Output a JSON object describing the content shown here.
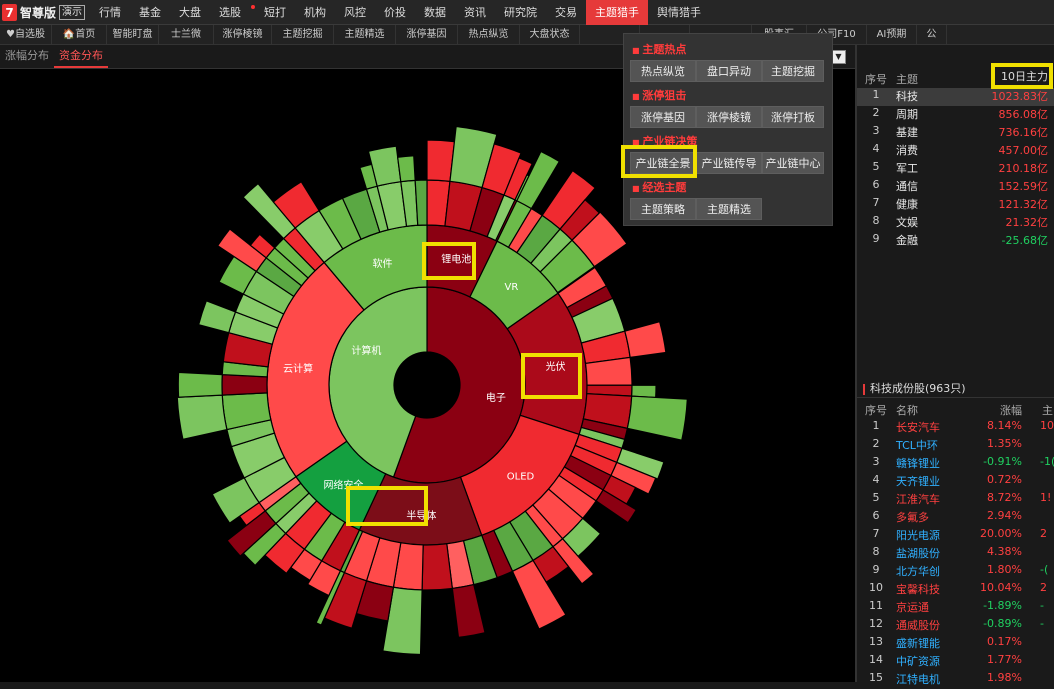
{
  "app": {
    "logo_glyph": "7",
    "name": "智尊版",
    "badge": "演示"
  },
  "topnav": [
    "行情",
    "基金",
    "大盘",
    "选股",
    "短打",
    "机构",
    "风控",
    "价投",
    "数据",
    "资讯",
    "研究院",
    "交易",
    "主题猎手",
    "舆情猎手"
  ],
  "topnav_selected": "主题猎手",
  "subnav": [
    "♥自选股",
    "🏠首页",
    "智能盯盘",
    "士兰微",
    "涨停棱镜",
    "主题挖掘",
    "主题精选",
    "涨停基因",
    "热点纵览",
    "大盘状态",
    "",
    "",
    "",
    "股事汇",
    "公司F10",
    "AI预期",
    "公"
  ],
  "tabs": [
    "涨幅分布",
    "资金分布"
  ],
  "tabs_selected": "资金分布",
  "dropdown_symbol": "▼",
  "menu": {
    "sections": [
      {
        "title": "主题热点",
        "buttons": [
          "热点纵览",
          "盘口异动",
          "主题挖掘"
        ]
      },
      {
        "title": "涨停狙击",
        "buttons": [
          "涨停基因",
          "涨停棱镜",
          "涨停打板"
        ]
      },
      {
        "title": "产业链决策",
        "buttons": [
          "产业链全景",
          "产业链传导",
          "产业链中心"
        ]
      },
      {
        "title": "经选主题",
        "buttons": [
          "主题策略",
          "主题精选"
        ]
      }
    ]
  },
  "sector_table": {
    "headers": {
      "no": "序号",
      "name": "主题",
      "value": "10日主力"
    },
    "rows": [
      {
        "no": "1",
        "name": "科技",
        "value": "1023.83亿",
        "dir": "up"
      },
      {
        "no": "2",
        "name": "周期",
        "value": "856.08亿",
        "dir": "up"
      },
      {
        "no": "3",
        "name": "基建",
        "value": "736.16亿",
        "dir": "up"
      },
      {
        "no": "4",
        "name": "消费",
        "value": "457.00亿",
        "dir": "up"
      },
      {
        "no": "5",
        "name": "军工",
        "value": "210.18亿",
        "dir": "up"
      },
      {
        "no": "6",
        "name": "通信",
        "value": "152.59亿",
        "dir": "up"
      },
      {
        "no": "7",
        "name": "健康",
        "value": "121.32亿",
        "dir": "up"
      },
      {
        "no": "8",
        "name": "文娱",
        "value": "21.32亿",
        "dir": "up"
      },
      {
        "no": "9",
        "name": "金融",
        "value": "-25.68亿",
        "dir": "dn"
      }
    ]
  },
  "stock_section": {
    "title": "科技成份股(963只)",
    "headers": {
      "no": "序号",
      "name": "名称",
      "pct": "涨幅",
      "extra": "主"
    },
    "rows": [
      {
        "no": "1",
        "name": "长安汽车",
        "pct": "8.14%",
        "extra": "10",
        "nc": "up",
        "pc": "up",
        "ec": "up"
      },
      {
        "no": "2",
        "name": "TCL中环",
        "pct": "1.35%",
        "extra": "",
        "nc": "blue",
        "pc": "up",
        "ec": "up"
      },
      {
        "no": "3",
        "name": "赣锋锂业",
        "pct": "-0.91%",
        "extra": "-1(",
        "nc": "blue",
        "pc": "dn",
        "ec": "dn"
      },
      {
        "no": "4",
        "name": "天齐锂业",
        "pct": "0.72%",
        "extra": "",
        "nc": "blue",
        "pc": "up",
        "ec": "up"
      },
      {
        "no": "5",
        "name": "江淮汽车",
        "pct": "8.72%",
        "extra": "1!",
        "nc": "up",
        "pc": "up",
        "ec": "up"
      },
      {
        "no": "6",
        "name": "多氟多",
        "pct": "2.94%",
        "extra": "",
        "nc": "up",
        "pc": "up",
        "ec": "up"
      },
      {
        "no": "7",
        "name": "阳光电源",
        "pct": "20.00%",
        "extra": "2",
        "nc": "blue",
        "pc": "up",
        "ec": "up"
      },
      {
        "no": "8",
        "name": "盐湖股份",
        "pct": "4.38%",
        "extra": "",
        "nc": "blue",
        "pc": "up",
        "ec": "up"
      },
      {
        "no": "9",
        "name": "北方华创",
        "pct": "1.80%",
        "extra": "-(",
        "nc": "blue",
        "pc": "up",
        "ec": "dn"
      },
      {
        "no": "10",
        "name": "宝馨科技",
        "pct": "10.04%",
        "extra": "2",
        "nc": "up",
        "pc": "up",
        "ec": "up"
      },
      {
        "no": "11",
        "name": "京运通",
        "pct": "-1.89%",
        "extra": "-",
        "nc": "up",
        "pc": "dn",
        "ec": "dn"
      },
      {
        "no": "12",
        "name": "通威股份",
        "pct": "-0.89%",
        "extra": "-",
        "nc": "up",
        "pc": "dn",
        "ec": "dn"
      },
      {
        "no": "13",
        "name": "盛新锂能",
        "pct": "0.17%",
        "extra": "",
        "nc": "blue",
        "pc": "up",
        "ec": "up"
      },
      {
        "no": "14",
        "name": "中矿资源",
        "pct": "1.77%",
        "extra": "",
        "nc": "blue",
        "pc": "up",
        "ec": "up"
      },
      {
        "no": "15",
        "name": "江特电机",
        "pct": "1.98%",
        "extra": "",
        "nc": "blue",
        "pc": "up",
        "ec": "up"
      }
    ]
  },
  "sunburst": {
    "inner": [
      {
        "label": "电子",
        "color": "#8b0012"
      },
      {
        "label": "计算机",
        "color": "#7cc55f"
      }
    ],
    "middle": [
      {
        "label": "锂电池",
        "color": "#8b0012"
      },
      {
        "label": "VR",
        "color": "#6cbb4a"
      },
      {
        "label": "光伏",
        "color": "#ab0a1a"
      },
      {
        "label": "OLED",
        "color": "#f02a30"
      },
      {
        "label": "半导体",
        "color": "#7c0d18"
      },
      {
        "label": "网络安全",
        "color": "#14a040"
      },
      {
        "label": "云计算",
        "color": "#ff4a4a"
      },
      {
        "label": "软件",
        "color": "#6cbb4a"
      }
    ]
  },
  "colors": {
    "up": "#ff4040",
    "down": "#20d060",
    "blue": "#30b0ff",
    "accent": "#e63a3a",
    "highlight": "#f0e000"
  }
}
